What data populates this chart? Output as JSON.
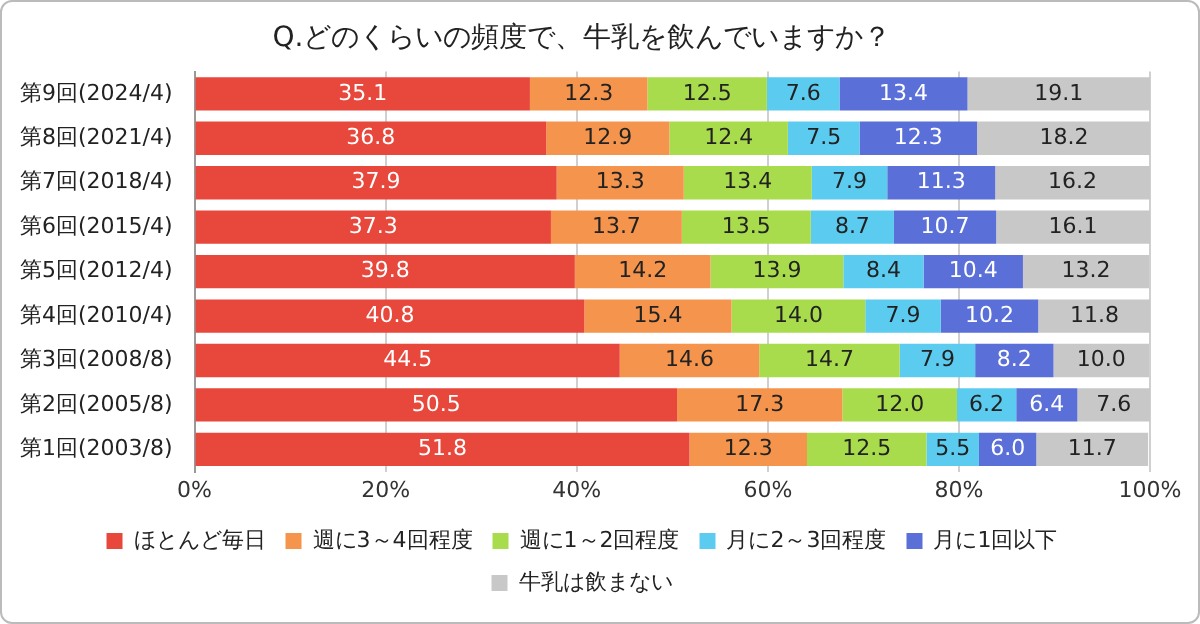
{
  "chart_data": {
    "type": "bar",
    "orientation": "horizontal",
    "stacked": true,
    "title": "Q.どのくらいの頻度で、牛乳を飲んでいますか？",
    "categories": [
      "第9回(2024/4)",
      "第8回(2021/4)",
      "第7回(2018/4)",
      "第6回(2015/4)",
      "第5回(2012/4)",
      "第4回(2010/4)",
      "第3回(2008/8)",
      "第2回(2005/8)",
      "第1回(2003/8)"
    ],
    "series": [
      {
        "name": "ほとんど毎日",
        "color": "#e8473c",
        "values": [
          35.1,
          36.8,
          37.9,
          37.3,
          39.8,
          40.8,
          44.5,
          50.5,
          51.8
        ],
        "value_labels": [
          "35.1",
          "36.8",
          "37.9",
          "37.3",
          "39.8",
          "40.8",
          "44.5",
          "50.5",
          "51.8"
        ]
      },
      {
        "name": "週に3～4回程度",
        "color": "#f5944c",
        "values": [
          12.3,
          12.9,
          13.3,
          13.7,
          14.2,
          15.4,
          14.6,
          17.3,
          12.3
        ],
        "value_labels": [
          "12.3",
          "12.9",
          "13.3",
          "13.7",
          "14.2",
          "15.4",
          "14.6",
          "17.3",
          "12.3"
        ]
      },
      {
        "name": "週に1～2回程度",
        "color": "#a8dc4c",
        "values": [
          12.5,
          12.4,
          13.4,
          13.5,
          13.9,
          14.0,
          14.7,
          12.0,
          12.5
        ],
        "value_labels": [
          "12.5",
          "12.4",
          "13.4",
          "13.5",
          "13.9",
          "14.0",
          "14.7",
          "12.0",
          "12.5"
        ]
      },
      {
        "name": "月に2～3回程度",
        "color": "#5ccbf0",
        "values": [
          7.6,
          7.5,
          7.9,
          8.7,
          8.4,
          7.9,
          7.9,
          6.2,
          5.5
        ],
        "value_labels": [
          "7.6",
          "7.5",
          "7.9",
          "8.7",
          "8.4",
          "7.9",
          "7.9",
          "6.2",
          "5.5"
        ]
      },
      {
        "name": "月に1回以下",
        "color": "#5a6fd8",
        "values": [
          13.4,
          12.3,
          11.3,
          10.7,
          10.4,
          10.2,
          8.2,
          6.4,
          6.0
        ],
        "value_labels": [
          "13.4",
          "12.3",
          "11.3",
          "10.7",
          "10.4",
          "10.2",
          "8.2",
          "6.4",
          "6.0"
        ]
      },
      {
        "name": "牛乳は飲まない",
        "color": "#c8c8c8",
        "values": [
          19.1,
          18.2,
          16.2,
          16.1,
          13.2,
          11.8,
          10.0,
          7.6,
          11.7
        ],
        "value_labels": [
          "19.1",
          "18.2",
          "16.2",
          "16.1",
          "13.2",
          "11.8",
          "10.0",
          "7.6",
          "11.7"
        ]
      }
    ],
    "xlim": [
      0,
      100
    ],
    "xticks": [
      {
        "value": 0,
        "label": "0%"
      },
      {
        "value": 20,
        "label": "20%"
      },
      {
        "value": 40,
        "label": "40%"
      },
      {
        "value": 60,
        "label": "60%"
      },
      {
        "value": 80,
        "label": "80%"
      },
      {
        "value": 100,
        "label": "100%"
      }
    ],
    "grid": "x",
    "legend": "bottom"
  }
}
